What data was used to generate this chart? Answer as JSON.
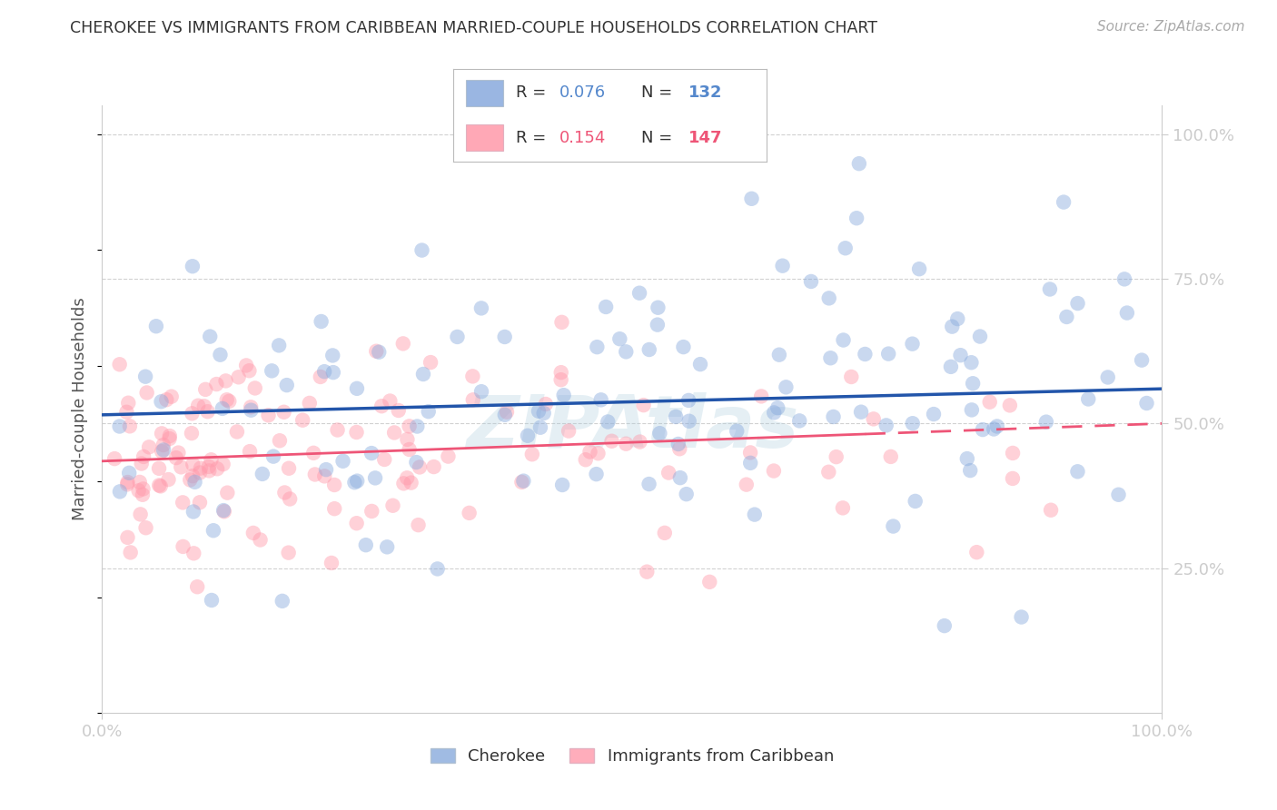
{
  "title": "CHEROKEE VS IMMIGRANTS FROM CARIBBEAN MARRIED-COUPLE HOUSEHOLDS CORRELATION CHART",
  "source": "Source: ZipAtlas.com",
  "ylabel": "Married-couple Households",
  "xlim": [
    0.0,
    1.0
  ],
  "ylim": [
    0.0,
    1.05
  ],
  "blue_R": 0.076,
  "blue_N": 132,
  "pink_R": 0.154,
  "pink_N": 147,
  "blue_label": "Cherokee",
  "pink_label": "Immigrants from Caribbean",
  "blue_scatter_color": "#88AADD",
  "pink_scatter_color": "#FF99AA",
  "blue_line_color": "#2255AA",
  "pink_line_color": "#EE5577",
  "bg_color": "#FFFFFF",
  "grid_color": "#CCCCCC",
  "axis_label_color": "#5588CC",
  "title_color": "#333333",
  "ylabel_color": "#555555",
  "source_color": "#AAAAAA",
  "watermark_color": "#AACCDD",
  "blue_trend_start_y": 0.515,
  "blue_trend_end_y": 0.56,
  "pink_trend_start_y": 0.435,
  "pink_trend_end_y": 0.5
}
